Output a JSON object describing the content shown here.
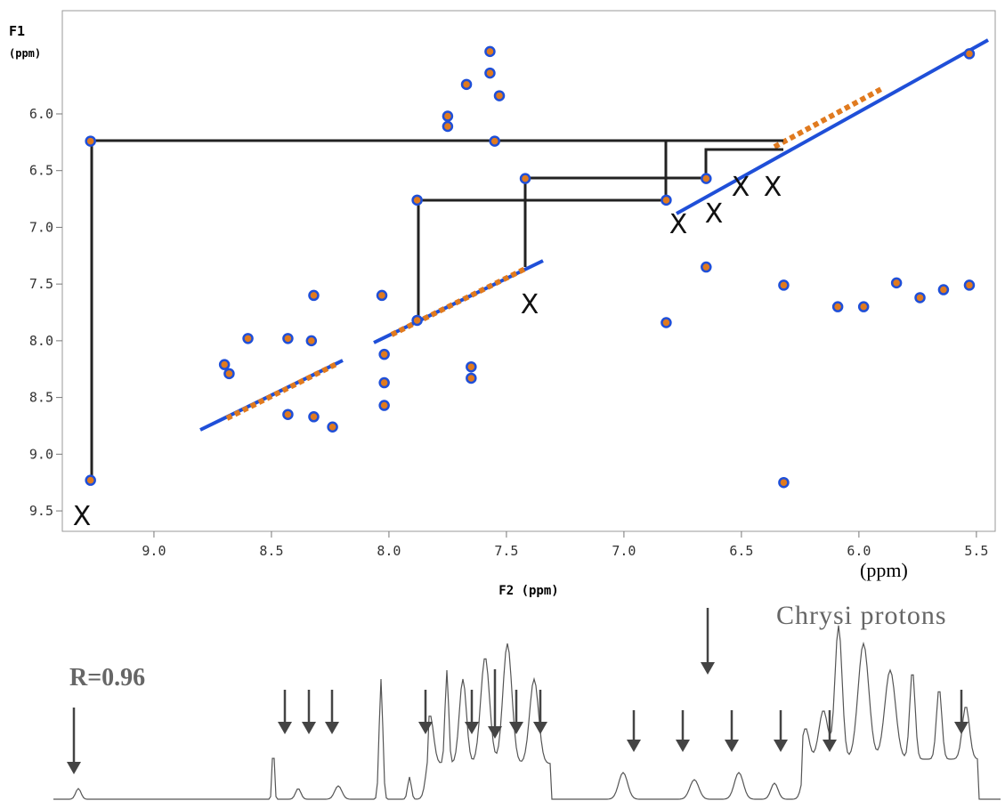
{
  "chart_data": {
    "type": "scatter",
    "y_label": [
      "F1",
      "(ppm)"
    ],
    "x_label": "F2 (ppm)",
    "x_unit_note": "(ppm)",
    "spectrum_label": "Chrysi protons",
    "correlation_label": "R=0.96",
    "annotations": [
      "X",
      "X",
      "X",
      "X",
      "X",
      "X"
    ],
    "xlim": [
      9.39,
      5.42
    ],
    "ylim": [
      5.09,
      9.68
    ],
    "xticks": [
      {
        "value": 9,
        "label": "9.0"
      },
      {
        "value": 8.5,
        "label": "8.5"
      },
      {
        "value": 8,
        "label": "8.0"
      },
      {
        "value": 7.5,
        "label": "7.5"
      },
      {
        "value": 7,
        "label": "7.0"
      },
      {
        "value": 6.5,
        "label": "6.5"
      },
      {
        "value": 6,
        "label": "6.0"
      },
      {
        "value": 5.5,
        "label": "5.5"
      }
    ],
    "yticks": [
      {
        "value": 6,
        "label": "6.0"
      },
      {
        "value": 6.5,
        "label": "6.5"
      },
      {
        "value": 7,
        "label": "7.0"
      },
      {
        "value": 7.5,
        "label": "7.5"
      },
      {
        "value": 8,
        "label": "8.0"
      },
      {
        "value": 8.5,
        "label": "8.5"
      },
      {
        "value": 9,
        "label": "9.0"
      },
      {
        "value": 9.5,
        "label": "9.5"
      }
    ],
    "color": "#1f4fd8",
    "x": [
      9.27,
      9.27,
      6.32,
      7.57,
      7.57,
      7.67,
      7.53,
      7.75,
      7.75,
      7.55,
      8.32,
      8.7,
      8.68,
      8.6,
      8.43,
      8.33,
      8.43,
      8.32,
      8.24,
      8.03,
      8.02,
      8.02,
      8.02,
      7.65,
      7.65,
      7.88,
      7.88,
      7.42,
      6.82,
      6.82,
      6.65,
      6.65,
      6.32,
      6.09,
      5.98,
      5.84,
      5.74,
      5.64,
      5.53,
      5.53
    ],
    "y": [
      9.23,
      6.24,
      9.25,
      5.45,
      5.64,
      5.74,
      5.84,
      6.02,
      6.11,
      6.24,
      7.6,
      8.21,
      8.29,
      7.98,
      7.98,
      8.0,
      8.65,
      8.67,
      8.76,
      7.6,
      8.12,
      8.37,
      8.57,
      8.23,
      8.33,
      7.82,
      6.76,
      6.57,
      6.76,
      7.84,
      6.57,
      7.35,
      7.51,
      7.7,
      7.7,
      7.49,
      7.62,
      7.55,
      7.51,
      5.47
    ]
  }
}
